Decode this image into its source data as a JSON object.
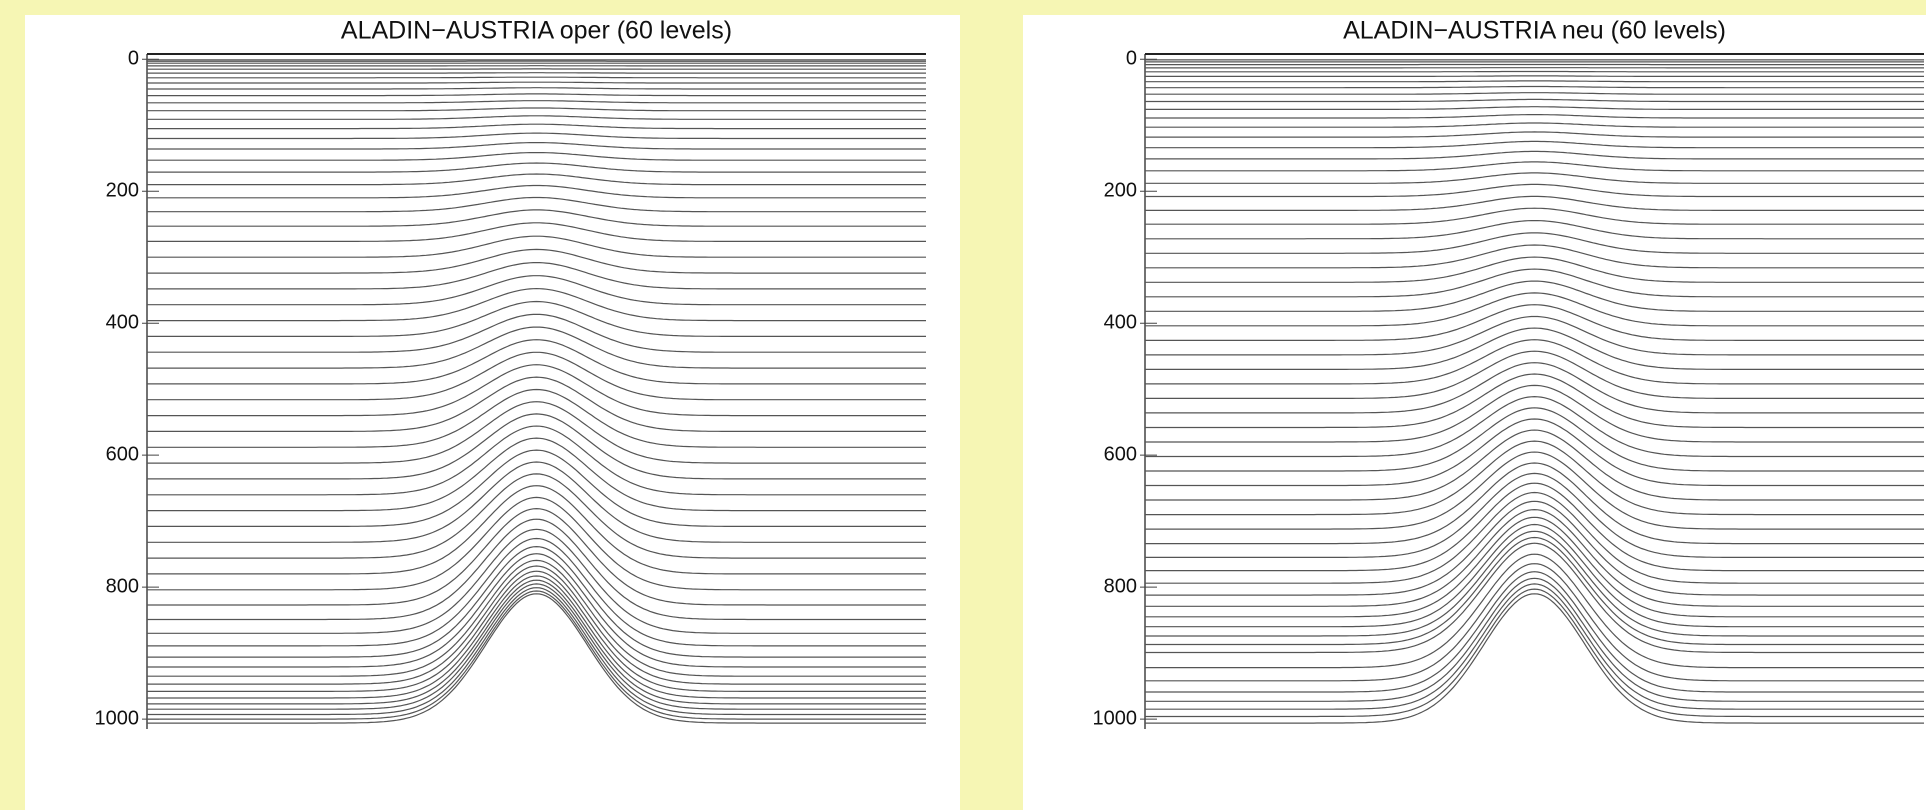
{
  "chart_data": [
    {
      "type": "levels",
      "title": "ALADIN−AUSTRIA oper (60 levels)",
      "color": "#555555",
      "ylim": [
        -8,
        1015
      ],
      "yticks": [
        0,
        200,
        400,
        600,
        800,
        1000
      ],
      "surface_pressure": 1013,
      "hill_top_pressure": 815,
      "levels": [
        1,
        3,
        6,
        10,
        15,
        21,
        28,
        36,
        45,
        55,
        66,
        78,
        91,
        105,
        120,
        136,
        153,
        171,
        190,
        210,
        231,
        253,
        276,
        300,
        324,
        348,
        372,
        396,
        420,
        444,
        468,
        492,
        516,
        540,
        564,
        588,
        612,
        636,
        660,
        684,
        708,
        732,
        756,
        780,
        804,
        827,
        849,
        870,
        889,
        906,
        921,
        935,
        947,
        958,
        968,
        977,
        985,
        993,
        1000,
        1006
      ]
    },
    {
      "type": "levels",
      "title": "ALADIN−AUSTRIA  neu (60 levels)",
      "color": "#555555",
      "ylim": [
        -8,
        1015
      ],
      "yticks": [
        0,
        200,
        400,
        600,
        800,
        1000
      ],
      "surface_pressure": 1013,
      "hill_top_pressure": 815,
      "levels": [
        1,
        4,
        8,
        13,
        19,
        26,
        34,
        43,
        53,
        64,
        76,
        89,
        103,
        118,
        134,
        151,
        169,
        188,
        208,
        229,
        250,
        272,
        294,
        316,
        338,
        360,
        382,
        404,
        426,
        448,
        470,
        492,
        514,
        536,
        558,
        580,
        602,
        624,
        646,
        668,
        690,
        712,
        734,
        755,
        775,
        794,
        812,
        829,
        845,
        860,
        874,
        887,
        899,
        922,
        942,
        959,
        973,
        985,
        996,
        1006
      ]
    }
  ]
}
